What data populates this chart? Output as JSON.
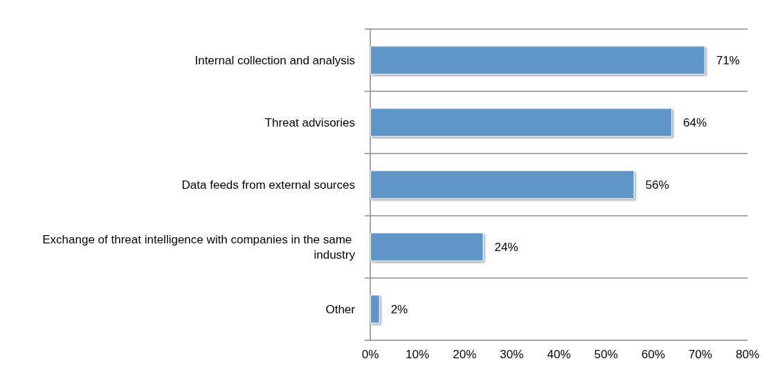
{
  "chart_data": {
    "type": "bar",
    "orientation": "horizontal",
    "categories": [
      "Internal collection and analysis",
      "Threat advisories",
      "Data feeds from external sources",
      "Exchange of threat intelligence with companies in the same industry",
      "Other"
    ],
    "values": [
      71,
      64,
      56,
      24,
      2
    ],
    "value_labels": [
      "71%",
      "64%",
      "56%",
      "24%",
      "2%"
    ],
    "color": "#6096c8",
    "xlim": [
      0,
      80
    ],
    "xticks": [
      {
        "value": 0,
        "label": "0%"
      },
      {
        "value": 10,
        "label": "10%"
      },
      {
        "value": 20,
        "label": "20%"
      },
      {
        "value": 30,
        "label": "30%"
      },
      {
        "value": 40,
        "label": "40%"
      },
      {
        "value": 50,
        "label": "50%"
      },
      {
        "value": 60,
        "label": "60%"
      },
      {
        "value": 70,
        "label": "70%"
      },
      {
        "value": 80,
        "label": "80%"
      }
    ],
    "grid": "y"
  }
}
